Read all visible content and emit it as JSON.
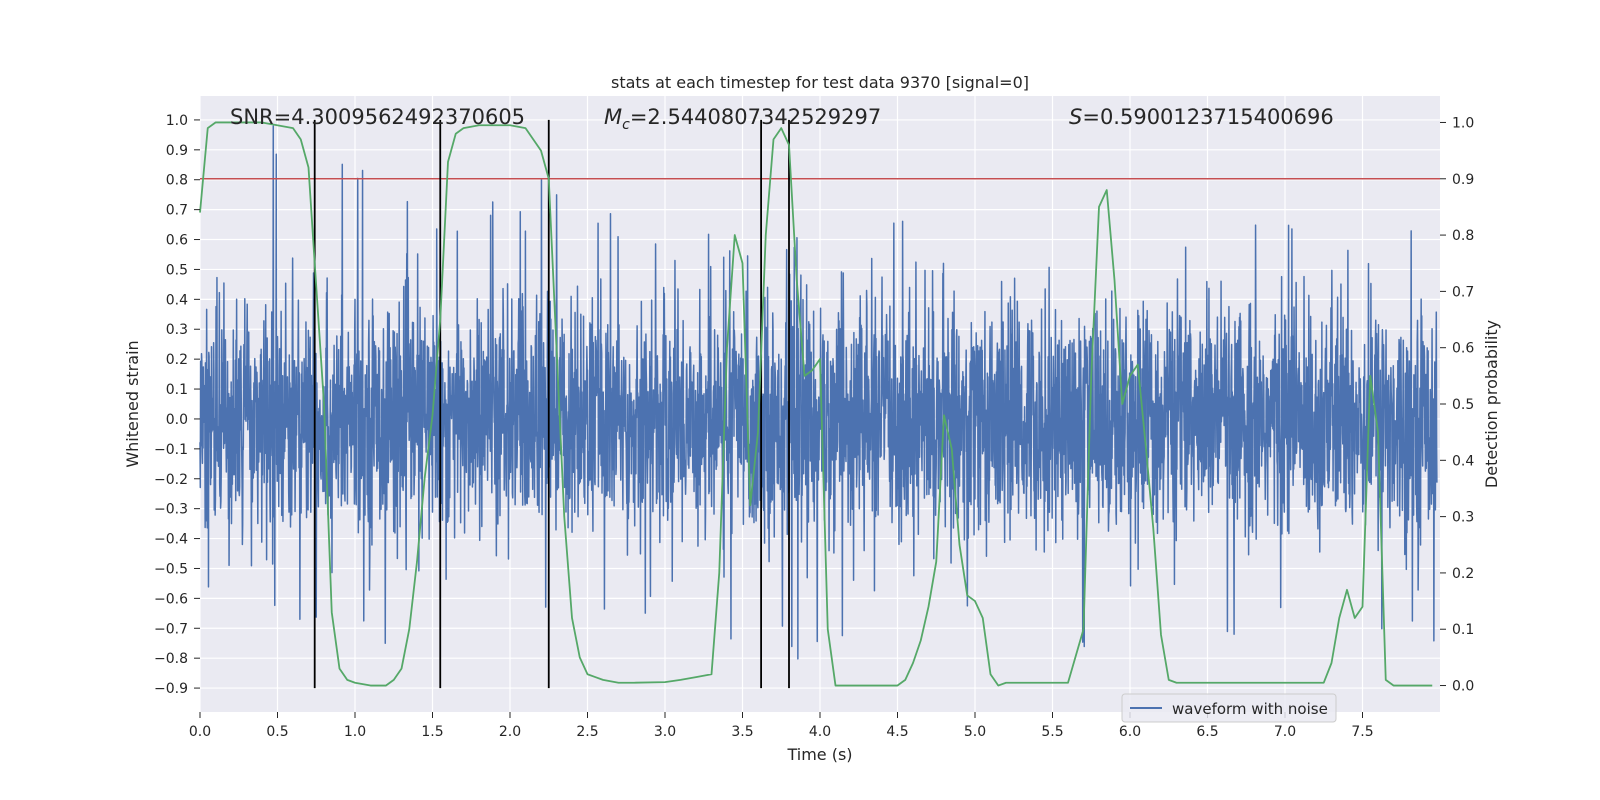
{
  "chart_data": {
    "type": "line",
    "title": "stats at each timestep for test data 9370 [signal=0]",
    "xlabel": "Time (s)",
    "ylabel": "Whitened strain",
    "y2label": "Detection probability",
    "xlim": [
      0.0,
      8.0
    ],
    "ylim": [
      -0.98,
      1.08
    ],
    "y2lim": [
      -0.047,
      1.047
    ],
    "xticks": [
      "0.0",
      "0.5",
      "1.0",
      "1.5",
      "2.0",
      "2.5",
      "3.0",
      "3.5",
      "4.0",
      "4.5",
      "5.0",
      "5.5",
      "6.0",
      "6.5",
      "7.0",
      "7.5"
    ],
    "yticks": [
      "1.0",
      "0.9",
      "0.8",
      "0.7",
      "0.6",
      "0.5",
      "0.4",
      "0.3",
      "0.2",
      "0.1",
      "0.0",
      "-0.1",
      "-0.2",
      "-0.3",
      "-0.4",
      "-0.5",
      "-0.6",
      "-0.7",
      "-0.8",
      "-0.9"
    ],
    "y2ticks": [
      "0.0",
      "0.1",
      "0.2",
      "0.3",
      "0.4",
      "0.5",
      "0.6",
      "0.7",
      "0.8",
      "0.9",
      "1.0"
    ],
    "grid": true,
    "legend": {
      "position": "lower-right",
      "entries": [
        "waveform with noise"
      ]
    },
    "annotations": {
      "snr_text": "SNR=4.3009562492370605",
      "mc_symbol": "M",
      "mc_subscript": "c",
      "mc_value": "=2.5440807342529297",
      "s_symbol": "S",
      "s_value": "=0.5900123715400696"
    },
    "threshold_probability": 0.9,
    "vertical_lines_x": [
      0.74,
      1.55,
      2.25,
      3.62,
      3.8
    ],
    "series": [
      {
        "name": "waveform with noise",
        "type": "line",
        "sample_rate_hz": 512,
        "envelope_sample_x": [
          0.0,
          0.25,
          0.75,
          1.0,
          1.2,
          1.6,
          2.25,
          3.0,
          3.4,
          3.8,
          4.2,
          5.0,
          5.15,
          6.0,
          7.0,
          7.5,
          7.9
        ],
        "envelope_sample_peaks": [
          0.78,
          1.0,
          0.96,
          0.89,
          0.82,
          0.67,
          0.91,
          0.66,
          0.6,
          0.83,
          0.71,
          0.73,
          1.0,
          0.66,
          0.72,
          0.7,
          0.65
        ],
        "envelope_sample_troughs": [
          -0.6,
          -0.72,
          -0.75,
          -0.79,
          -0.84,
          -0.89,
          -0.74,
          -0.64,
          -0.87,
          -0.82,
          -0.78,
          -0.66,
          -0.63,
          -0.86,
          -0.84,
          -0.7,
          -0.83
        ]
      },
      {
        "type": "line",
        "axis": "right",
        "x": [
          0.0,
          0.05,
          0.1,
          0.2,
          0.4,
          0.6,
          0.65,
          0.7,
          0.74,
          0.8,
          0.85,
          0.9,
          0.95,
          1.0,
          1.1,
          1.2,
          1.25,
          1.3,
          1.35,
          1.4,
          1.45,
          1.5,
          1.55,
          1.6,
          1.65,
          1.7,
          1.8,
          2.0,
          2.1,
          2.15,
          2.2,
          2.25,
          2.3,
          2.35,
          2.4,
          2.45,
          2.5,
          2.55,
          2.6,
          2.7,
          2.8,
          3.0,
          3.1,
          3.2,
          3.3,
          3.35,
          3.4,
          3.45,
          3.5,
          3.55,
          3.6,
          3.65,
          3.7,
          3.75,
          3.8,
          3.85,
          3.9,
          3.95,
          4.0,
          4.05,
          4.1,
          4.2,
          4.5,
          4.55,
          4.6,
          4.65,
          4.7,
          4.75,
          4.8,
          4.85,
          4.9,
          4.95,
          5.0,
          5.05,
          5.1,
          5.15,
          5.2,
          5.4,
          5.5,
          5.6,
          5.7,
          5.75,
          5.8,
          5.85,
          5.9,
          5.95,
          6.0,
          6.05,
          6.1,
          6.15,
          6.2,
          6.25,
          6.3,
          6.4,
          6.6,
          6.8,
          7.0,
          7.25,
          7.3,
          7.35,
          7.4,
          7.45,
          7.5,
          7.55,
          7.6,
          7.65,
          7.7,
          7.8,
          7.95
        ],
        "y": [
          0.84,
          0.99,
          1.0,
          1.0,
          1.0,
          0.99,
          0.97,
          0.92,
          0.75,
          0.5,
          0.13,
          0.03,
          0.01,
          0.005,
          0.0,
          0.0,
          0.01,
          0.03,
          0.1,
          0.22,
          0.37,
          0.48,
          0.65,
          0.93,
          0.98,
          0.99,
          0.995,
          0.995,
          0.99,
          0.97,
          0.95,
          0.9,
          0.6,
          0.3,
          0.12,
          0.05,
          0.02,
          0.015,
          0.01,
          0.005,
          0.005,
          0.006,
          0.01,
          0.015,
          0.02,
          0.2,
          0.6,
          0.8,
          0.75,
          0.32,
          0.45,
          0.8,
          0.97,
          0.99,
          0.96,
          0.72,
          0.55,
          0.56,
          0.58,
          0.1,
          0.0,
          0.0,
          0.0,
          0.01,
          0.04,
          0.08,
          0.14,
          0.22,
          0.48,
          0.42,
          0.25,
          0.16,
          0.15,
          0.12,
          0.02,
          0.0,
          0.005,
          0.005,
          0.005,
          0.005,
          0.1,
          0.55,
          0.85,
          0.88,
          0.72,
          0.5,
          0.55,
          0.57,
          0.43,
          0.28,
          0.09,
          0.01,
          0.005,
          0.005,
          0.005,
          0.005,
          0.005,
          0.005,
          0.04,
          0.12,
          0.17,
          0.12,
          0.14,
          0.55,
          0.45,
          0.01,
          0.0,
          0.0,
          0.0
        ]
      }
    ]
  }
}
